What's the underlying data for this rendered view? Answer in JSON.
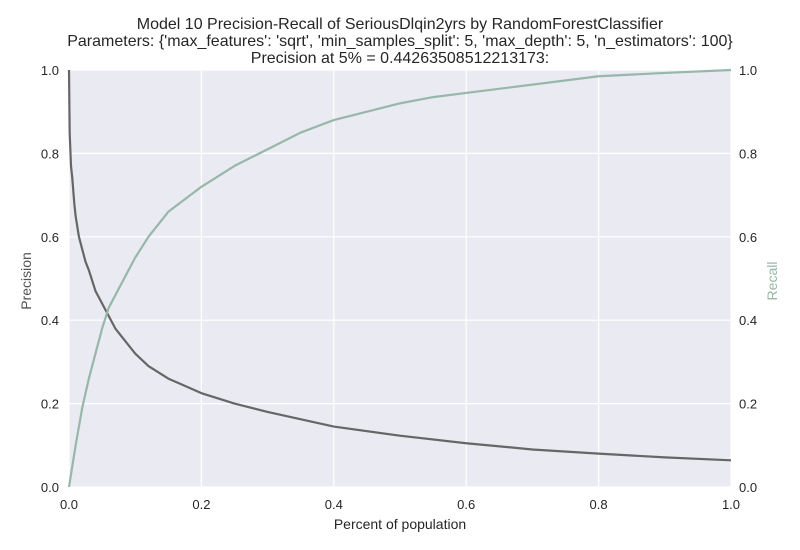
{
  "chart_data": {
    "type": "line",
    "title": "Model 10 Precision-Recall of SeriousDlqin2yrs by RandomForestClassifier",
    "subtitle": "Parameters: {'max_features': 'sqrt', 'min_samples_split': 5, 'max_depth': 5, 'n_estimators': 100}",
    "annotation": "Precision at 5% = 0.44263508512213173:",
    "xlabel": "Percent of population",
    "ylabel_left": "Precision",
    "ylabel_right": "Recall",
    "xlim": [
      0,
      1
    ],
    "ylim_left": [
      0,
      1
    ],
    "ylim_right": [
      0,
      1
    ],
    "grid": true,
    "x_ticks": [
      "0.0",
      "0.2",
      "0.4",
      "0.6",
      "0.8",
      "1.0"
    ],
    "y_ticks_left": [
      "0.0",
      "0.2",
      "0.4",
      "0.6",
      "0.8",
      "1.0"
    ],
    "y_ticks_right": [
      "0.0",
      "0.2",
      "0.4",
      "0.6",
      "0.8",
      "1.0"
    ],
    "colors": {
      "precision": "#666666",
      "recall": "#97b7a8",
      "plot_bg": "#eaeaf2",
      "grid": "#ffffff"
    },
    "series": [
      {
        "axis": "left",
        "x": [
          0,
          0.001,
          0.003,
          0.005,
          0.008,
          0.01,
          0.015,
          0.02,
          0.025,
          0.03,
          0.04,
          0.05,
          0.06,
          0.07,
          0.08,
          0.1,
          0.12,
          0.15,
          0.2,
          0.25,
          0.3,
          0.4,
          0.5,
          0.6,
          0.7,
          0.8,
          0.9,
          1.0
        ],
        "values": [
          1.0,
          0.85,
          0.77,
          0.74,
          0.68,
          0.65,
          0.6,
          0.57,
          0.54,
          0.52,
          0.47,
          0.44,
          0.41,
          0.38,
          0.36,
          0.32,
          0.29,
          0.26,
          0.225,
          0.2,
          0.18,
          0.145,
          0.123,
          0.105,
          0.09,
          0.08,
          0.071,
          0.064
        ]
      },
      {
        "axis": "right",
        "x": [
          0,
          0.005,
          0.01,
          0.02,
          0.03,
          0.04,
          0.05,
          0.06,
          0.07,
          0.08,
          0.1,
          0.12,
          0.15,
          0.2,
          0.25,
          0.3,
          0.35,
          0.4,
          0.45,
          0.5,
          0.55,
          0.6,
          0.7,
          0.8,
          0.9,
          1.0
        ],
        "values": [
          0.0,
          0.05,
          0.1,
          0.19,
          0.26,
          0.32,
          0.38,
          0.43,
          0.46,
          0.49,
          0.55,
          0.6,
          0.66,
          0.72,
          0.77,
          0.81,
          0.85,
          0.88,
          0.9,
          0.92,
          0.935,
          0.945,
          0.965,
          0.985,
          0.993,
          1.0
        ]
      }
    ]
  }
}
